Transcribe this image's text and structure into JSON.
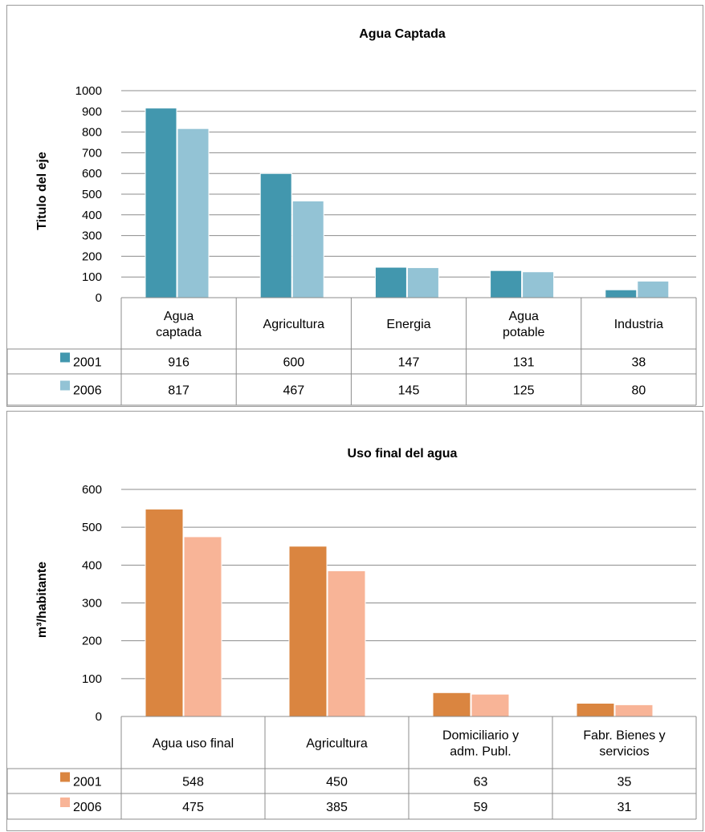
{
  "chart_data": [
    {
      "type": "bar",
      "title": "Agua Captada",
      "ylabel": "Titulo del eje",
      "ylabel_sup": "",
      "ylabel_rest": "",
      "ylim": [
        0,
        1000
      ],
      "yticks": [
        0,
        100,
        200,
        300,
        400,
        500,
        600,
        700,
        800,
        900,
        1000
      ],
      "categories": [
        "Agua captada",
        "Agricultura",
        "Energia",
        "Agua potable",
        "Industria"
      ],
      "category_lines": [
        [
          "Agua",
          "captada"
        ],
        [
          "Agricultura"
        ],
        [
          "Energia"
        ],
        [
          "Agua",
          "potable"
        ],
        [
          "Industria"
        ]
      ],
      "series": [
        {
          "name": "2001",
          "color": "#4297AE",
          "values": [
            916,
            600,
            147,
            131,
            38
          ]
        },
        {
          "name": "2006",
          "color": "#93C3D5",
          "values": [
            817,
            467,
            145,
            125,
            80
          ]
        }
      ],
      "grid": true,
      "legend": "data-table"
    },
    {
      "type": "bar",
      "title": "Uso final del agua",
      "ylabel": "m3/habitante",
      "ylabel_sup": "m³",
      "ylabel_rest": "/habitante",
      "ylim": [
        0,
        600
      ],
      "yticks": [
        0,
        100,
        200,
        300,
        400,
        500,
        600
      ],
      "categories": [
        "Agua uso final",
        "Agricultura",
        "Domiciliario y adm. Publ.",
        "Fabr. Bienes y servicios"
      ],
      "category_lines": [
        [
          "Agua uso final"
        ],
        [
          "Agricultura"
        ],
        [
          "Domiciliario y",
          "adm. Publ."
        ],
        [
          "Fabr. Bienes y",
          "servicios"
        ]
      ],
      "series": [
        {
          "name": "2001",
          "color": "#DA8540",
          "values": [
            548,
            450,
            63,
            35
          ]
        },
        {
          "name": "2006",
          "color": "#F8B497",
          "values": [
            475,
            385,
            59,
            31
          ]
        }
      ],
      "grid": true,
      "legend": "data-table"
    }
  ]
}
